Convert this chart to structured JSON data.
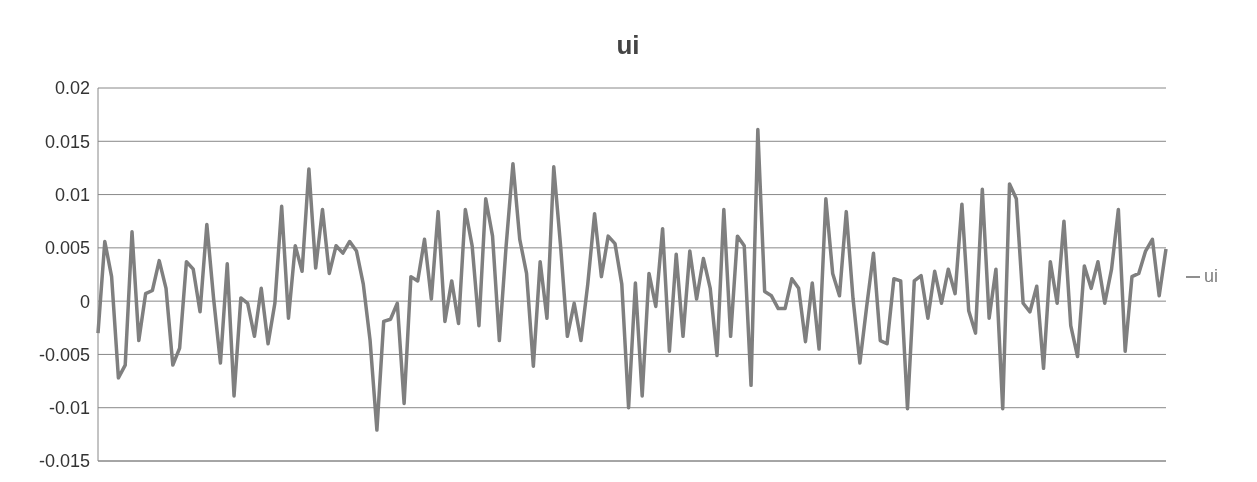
{
  "chart_data": {
    "type": "line",
    "title": "ui",
    "ylim": [
      -0.015,
      0.02
    ],
    "yticks": [
      -0.015,
      -0.01,
      -0.005,
      0,
      0.005,
      0.01,
      0.015,
      0.02
    ],
    "grid": "y",
    "legend": "right",
    "marker": "none",
    "line_style": "solid",
    "categories": [
      null,
      null,
      null,
      null,
      null,
      null,
      null,
      null,
      null,
      null,
      null,
      null,
      null,
      null,
      null,
      null,
      null,
      null,
      null,
      null,
      null,
      null,
      null,
      null,
      null,
      null,
      null,
      null,
      null,
      null,
      null,
      null,
      null,
      null,
      null,
      null,
      null,
      null,
      null,
      null,
      null,
      null,
      null,
      null,
      null,
      null,
      null,
      null,
      null,
      null,
      null,
      null,
      null,
      null,
      null,
      null,
      null,
      null,
      null,
      null,
      null,
      null,
      null,
      null,
      null,
      null,
      null,
      null,
      null,
      null,
      null,
      null,
      null,
      null,
      null,
      null,
      null,
      null,
      null,
      null,
      null,
      null,
      null,
      null,
      null,
      null,
      null,
      null,
      null,
      null,
      null,
      null,
      null,
      null,
      null,
      null,
      null,
      null,
      null,
      null,
      null,
      null,
      null,
      null,
      null,
      null,
      null,
      null,
      null,
      null,
      null,
      null,
      null,
      null,
      null,
      null,
      null,
      null,
      null,
      null,
      null,
      null,
      null,
      null,
      null,
      null,
      null,
      null,
      null,
      null,
      null,
      null,
      null,
      null,
      null,
      null,
      null,
      null,
      null,
      null,
      null,
      null,
      null,
      null,
      null,
      null,
      null,
      null,
      null,
      null,
      null,
      null,
      null,
      null,
      null,
      null,
      null,
      null
    ],
    "series": [
      {
        "name": "ui",
        "color": "#7f7f7f",
        "values": [
          -0.003,
          0.0056,
          0.0023,
          -0.0072,
          -0.006,
          0.0065,
          -0.0037,
          0.0007,
          0.001,
          0.0038,
          0.0012,
          -0.006,
          -0.0044,
          0.0037,
          0.003,
          -0.001,
          0.0072,
          0.0002,
          -0.0058,
          0.0035,
          -0.0089,
          0.0003,
          -0.0002,
          -0.0033,
          0.0012,
          -0.004,
          -0.0002,
          0.0089,
          -0.0016,
          0.0052,
          0.0028,
          0.0124,
          0.0031,
          0.0086,
          0.0026,
          0.0052,
          0.0045,
          0.0056,
          0.0047,
          0.0016,
          -0.0037,
          -0.0121,
          -0.0019,
          -0.0017,
          -0.0002,
          -0.0096,
          0.0023,
          0.0019,
          0.0058,
          0.0002,
          0.0084,
          -0.0019,
          0.0019,
          -0.0021,
          0.0086,
          0.0052,
          -0.0023,
          0.0096,
          0.0061,
          -0.0037,
          0.0052,
          0.0129,
          0.0058,
          0.0026,
          -0.0061,
          0.0037,
          -0.0016,
          0.0126,
          0.0052,
          -0.0033,
          -0.0002,
          -0.0037,
          0.0016,
          0.0082,
          0.0023,
          0.0061,
          0.0054,
          0.0016,
          -0.01,
          0.0017,
          -0.0089,
          0.0026,
          -0.0005,
          0.0068,
          -0.0047,
          0.0044,
          -0.0033,
          0.0047,
          0.0002,
          0.004,
          0.0012,
          -0.0051,
          0.0086,
          -0.0033,
          0.0061,
          0.0052,
          -0.0079,
          0.0161,
          0.0009,
          0.0005,
          -0.0007,
          -0.0007,
          0.0021,
          0.0012,
          -0.0038,
          0.0017,
          -0.0045,
          0.0096,
          0.0026,
          0.0005,
          0.0084,
          0.0002,
          -0.0058,
          -0.0005,
          0.0045,
          -0.0037,
          -0.004,
          0.0021,
          0.0019,
          -0.0101,
          0.0019,
          0.0024,
          -0.0016,
          0.0028,
          -0.0002,
          0.003,
          0.0007,
          0.0091,
          -0.0009,
          -0.003,
          0.0105,
          -0.0016,
          0.003,
          -0.0101,
          0.011,
          0.0096,
          -0.0002,
          -0.001,
          0.0014,
          -0.0063,
          0.0037,
          -0.0002,
          0.0075,
          -0.0023,
          -0.0052,
          0.0033,
          0.0012,
          0.0037,
          -0.0002,
          0.003,
          0.0086,
          -0.0047,
          0.0023,
          0.0026,
          0.0047,
          0.0058,
          0.0005,
          0.0049
        ]
      }
    ]
  }
}
